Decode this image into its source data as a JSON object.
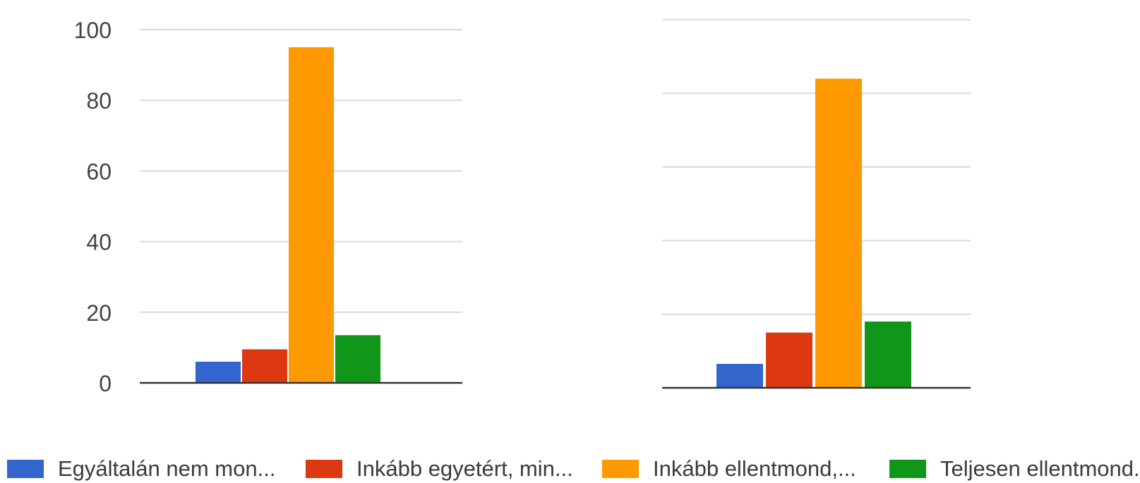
{
  "chart_data": [
    {
      "type": "bar",
      "categories": [
        ""
      ],
      "series": [
        {
          "name": "Egyáltalán nem mon...",
          "values": [
            6
          ],
          "color": "#3366cc"
        },
        {
          "name": "Inkább egyetért, min...",
          "values": [
            9.5
          ],
          "color": "#dc3912"
        },
        {
          "name": "Inkább ellentmond,...",
          "values": [
            95
          ],
          "color": "#ff9900"
        },
        {
          "name": "Teljesen ellentmond.",
          "values": [
            13.5
          ],
          "color": "#109618"
        }
      ],
      "ylim": [
        0,
        100
      ],
      "yticks": [
        0,
        20,
        40,
        60,
        80,
        100
      ],
      "grid": true,
      "legend": "bottom"
    },
    {
      "type": "bar",
      "categories": [
        ""
      ],
      "series": [
        {
          "name": "Egyáltalán nem mon...",
          "values": [
            6.5
          ],
          "color": "#3366cc"
        },
        {
          "name": "Inkább egyetért, min...",
          "values": [
            15
          ],
          "color": "#dc3912"
        },
        {
          "name": "Inkább ellentmond,...",
          "values": [
            84
          ],
          "color": "#ff9900"
        },
        {
          "name": "Teljesen ellentmond.",
          "values": [
            18
          ],
          "color": "#109618"
        }
      ],
      "ylim": [
        0,
        100
      ],
      "grid": true,
      "legend": "bottom"
    }
  ],
  "legend": {
    "items": [
      {
        "label": "Egyáltalán nem mon...",
        "color": "#3366cc"
      },
      {
        "label": "Inkább egyetért, min...",
        "color": "#dc3912"
      },
      {
        "label": "Inkább ellentmond,...",
        "color": "#ff9900"
      },
      {
        "label": "Teljesen ellentmond.",
        "color": "#109618"
      }
    ]
  }
}
